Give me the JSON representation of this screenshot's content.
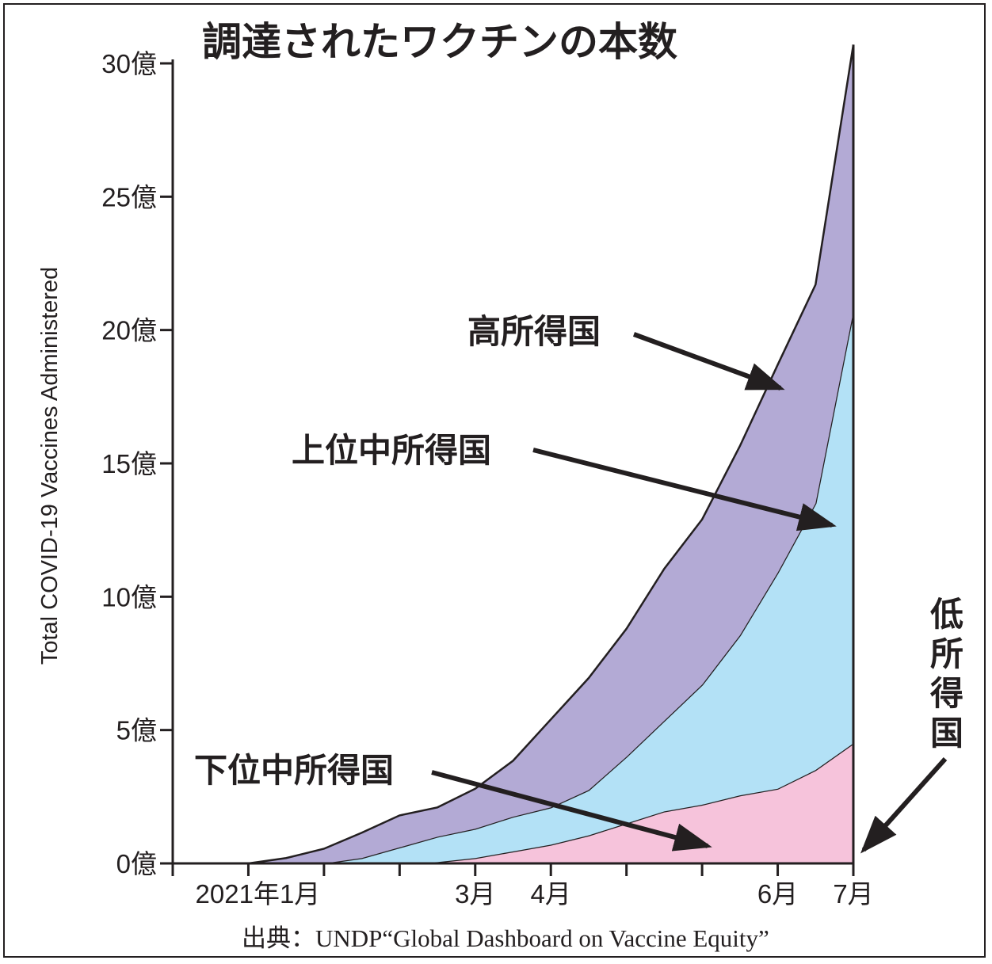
{
  "chart_data": {
    "type": "area",
    "stacked": true,
    "title": "調達されたワクチンの本数",
    "ylabel": "Total COVID-19 Vaccines Administered",
    "xlabel": "",
    "source": "出典：UNDP“Global Dashboard on Vaccine Equity”",
    "ylim": [
      0,
      30
    ],
    "y_unit": "億",
    "y_ticks": [
      {
        "value": 0,
        "label": "0億"
      },
      {
        "value": 5,
        "label": "5億"
      },
      {
        "value": 10,
        "label": "10億"
      },
      {
        "value": 15,
        "label": "15億"
      },
      {
        "value": 20,
        "label": "20億"
      },
      {
        "value": 25,
        "label": "25億"
      },
      {
        "value": 30,
        "label": "30億"
      }
    ],
    "x_ticks": [
      {
        "month": -1,
        "label": ""
      },
      {
        "month": 0,
        "label": "2021年1月"
      },
      {
        "month": 1,
        "label": ""
      },
      {
        "month": 2,
        "label": ""
      },
      {
        "month": 3,
        "label": "3月"
      },
      {
        "month": 4,
        "label": "4月"
      },
      {
        "month": 5,
        "label": ""
      },
      {
        "month": 6,
        "label": ""
      },
      {
        "month": 7,
        "label": "6月"
      },
      {
        "month": 8,
        "label": "7月"
      }
    ],
    "xlim": [
      -1,
      8
    ],
    "x": [
      0,
      0.5,
      1,
      1.5,
      2,
      2.5,
      3,
      3.5,
      4,
      4.5,
      5,
      5.5,
      6,
      6.5,
      7,
      7.5,
      8
    ],
    "series": [
      {
        "name": "低所得国",
        "color": "#ffffff",
        "values": [
          0,
          0,
          0,
          0,
          0,
          0,
          0,
          0,
          0,
          0,
          0,
          0,
          0,
          0,
          0,
          0,
          0
        ]
      },
      {
        "name": "下位中所得国",
        "color": "#f6c3db",
        "values": [
          0,
          0,
          0,
          0,
          0,
          0.05,
          0.2,
          0.45,
          0.7,
          1.05,
          1.5,
          1.95,
          2.2,
          2.55,
          2.8,
          3.5,
          4.5
        ]
      },
      {
        "name": "上位中所得国",
        "color": "#b3e1f6",
        "values": [
          0,
          0,
          0,
          0.2,
          0.6,
          0.95,
          1.1,
          1.3,
          1.4,
          1.7,
          2.5,
          3.4,
          4.5,
          6.0,
          8.1,
          10.0,
          16.2
        ]
      },
      {
        "name": "高所得国",
        "color": "#b3aad5",
        "values": [
          0,
          0.2,
          0.55,
          0.95,
          1.2,
          1.1,
          1.5,
          2.1,
          3.3,
          4.2,
          4.8,
          5.7,
          6.2,
          7.1,
          7.8,
          8.2,
          10.0
        ]
      }
    ],
    "legend": "annotated labels with arrows",
    "grid": false
  }
}
